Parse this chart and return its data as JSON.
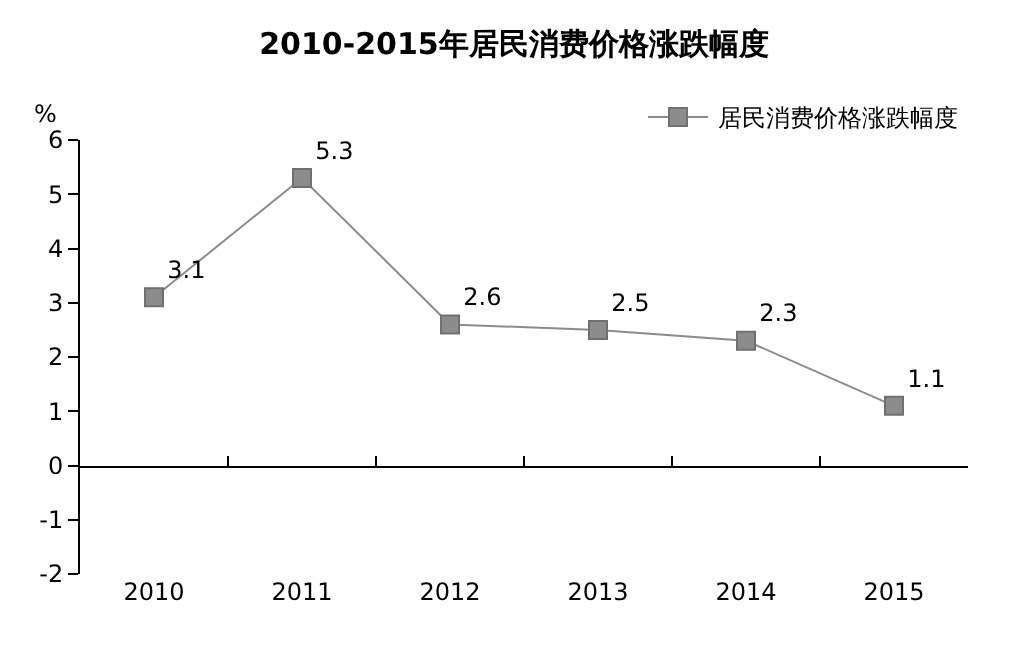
{
  "chart_data": {
    "type": "line",
    "title": "2010-2015年居民消费价格涨跌幅度",
    "ylabel": "%",
    "categories": [
      "2010",
      "2011",
      "2012",
      "2013",
      "2014",
      "2015"
    ],
    "series": [
      {
        "name": "居民消费价格涨跌幅度",
        "color": "#8c8c8c",
        "values": [
          3.1,
          5.3,
          2.6,
          2.5,
          2.3,
          1.1
        ]
      }
    ],
    "ylim": [
      -2,
      6
    ],
    "yticks": [
      -2,
      -1,
      0,
      1,
      2,
      3,
      4,
      5,
      6
    ],
    "data_labels": true,
    "marker": "square",
    "line_style": "solid",
    "legend": "top right"
  }
}
